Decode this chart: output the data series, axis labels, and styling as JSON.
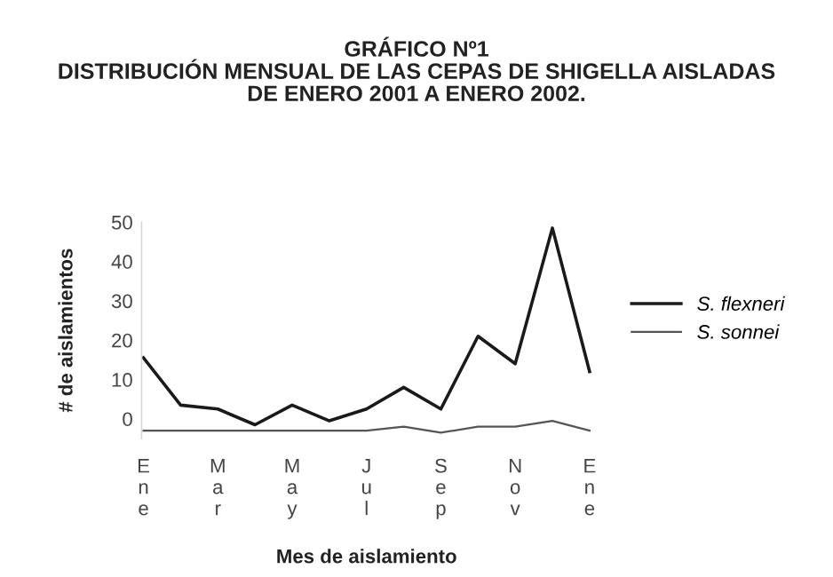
{
  "chart_data": {
    "type": "line",
    "title": "GRÁFICO Nº1\nDISTRIBUCIÓN MENSUAL DE LAS CEPAS DE SHIGELLA AISLADAS\nDE ENERO 2001 A ENERO 2002.",
    "xlabel": "Mes de aislamiento",
    "ylabel": "# de aislamientos",
    "categories": [
      "Ene",
      null,
      "Mar",
      null,
      "May",
      null,
      "Jul",
      null,
      "Sep",
      null,
      "Nov",
      null,
      "Ene"
    ],
    "series": [
      {
        "name": "S. flexneri",
        "color": "#1a1a1a",
        "values": [
          15.5,
          3.5,
          2.5,
          -1.5,
          3.5,
          -0.5,
          2.5,
          8,
          2.5,
          21,
          14,
          48.5,
          12
        ]
      },
      {
        "name": "S. sonnei",
        "color": "#555555",
        "values": [
          -3,
          -3,
          -3,
          -3,
          -3,
          -3,
          -3,
          -2,
          -3.5,
          -2,
          -2,
          -0.5,
          -3
        ]
      }
    ],
    "ylim": [
      -5,
      50
    ],
    "yticks": [
      0,
      10,
      20,
      30,
      40,
      50
    ],
    "grid": false,
    "legend": "right",
    "marker": "none",
    "line_style": "solid"
  }
}
